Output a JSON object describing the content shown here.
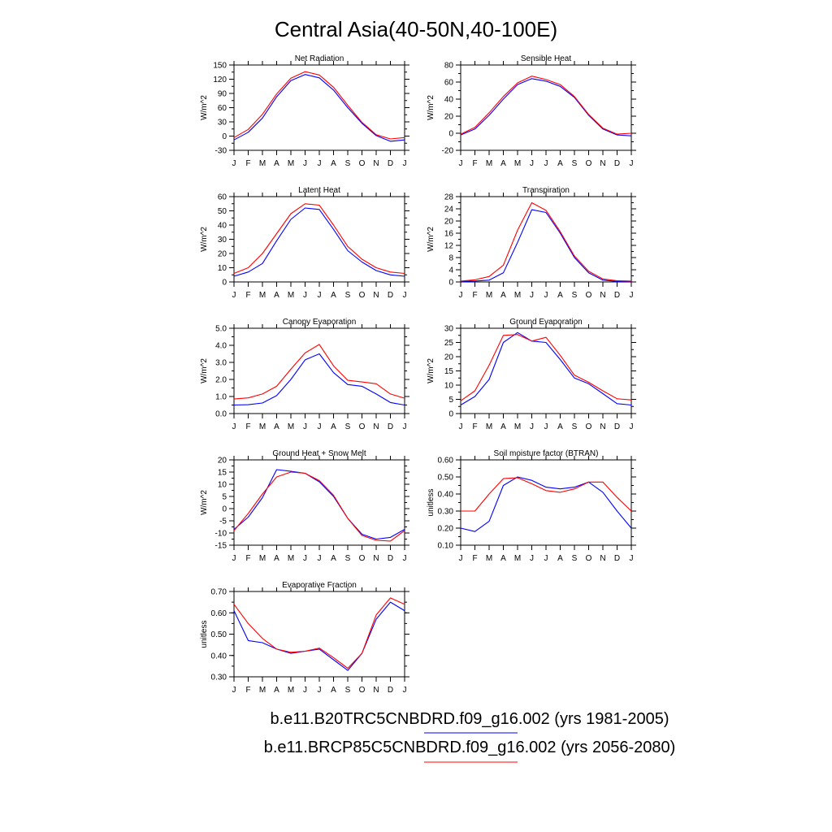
{
  "title": "Central Asia(40-50N,40-100E)",
  "colors": {
    "series_a": "#0000ff",
    "series_b": "#ff0000",
    "axis": "#000000"
  },
  "legend": [
    {
      "label": "b.e11.B20TRC5CNBDRD.f09_g16.002 (yrs 1981-2005)",
      "color": "#0000ff"
    },
    {
      "label": "b.e11.BRCP85C5CNBDRD.f09_g16.002 (yrs 2056-2080)",
      "color": "#ff0000"
    }
  ],
  "chart_data": [
    {
      "type": "line",
      "title": "Net Radiation",
      "ylabel": "W/m^2",
      "categories": [
        "J",
        "F",
        "M",
        "A",
        "M",
        "J",
        "J",
        "A",
        "S",
        "O",
        "N",
        "D",
        "J"
      ],
      "ylim": [
        -30,
        150
      ],
      "yticks": [
        "-30",
        "0",
        "30",
        "60",
        "90",
        "120",
        "150"
      ],
      "yminor": 15,
      "grid": false,
      "series": [
        {
          "values": [
            -8,
            8,
            38,
            83,
            117,
            130,
            123,
            97,
            60,
            27,
            1,
            -11,
            -8
          ]
        },
        {
          "values": [
            -3,
            14,
            46,
            89,
            122,
            136,
            129,
            103,
            65,
            29,
            3,
            -6,
            -3
          ]
        }
      ]
    },
    {
      "type": "line",
      "title": "Sensible Heat",
      "ylabel": "W/m^2",
      "categories": [
        "J",
        "F",
        "M",
        "A",
        "M",
        "J",
        "J",
        "A",
        "S",
        "O",
        "N",
        "D",
        "J"
      ],
      "ylim": [
        -20,
        80
      ],
      "yticks": [
        "-20",
        "0",
        "20",
        "40",
        "60",
        "80"
      ],
      "yminor": 10,
      "grid": false,
      "series": [
        {
          "values": [
            -2,
            5,
            21,
            40,
            57,
            64,
            61,
            55,
            42,
            21,
            5,
            -2,
            -3
          ]
        },
        {
          "values": [
            -1,
            7,
            24,
            43,
            59,
            67,
            63,
            57,
            43,
            22,
            6,
            -1,
            0
          ]
        }
      ]
    },
    {
      "type": "line",
      "title": "Latent Heat",
      "ylabel": "W/m^2",
      "categories": [
        "J",
        "F",
        "M",
        "A",
        "M",
        "J",
        "J",
        "A",
        "S",
        "O",
        "N",
        "D",
        "J"
      ],
      "ylim": [
        0,
        60
      ],
      "yticks": [
        "0",
        "10",
        "20",
        "30",
        "40",
        "50",
        "60"
      ],
      "yminor": 5,
      "grid": false,
      "series": [
        {
          "values": [
            4,
            7,
            13,
            29,
            44,
            52,
            51,
            37,
            22,
            14,
            8,
            5,
            4
          ]
        },
        {
          "values": [
            6,
            10,
            20,
            34,
            48,
            55,
            54,
            40,
            25,
            16,
            10,
            7,
            6
          ]
        }
      ]
    },
    {
      "type": "line",
      "title": "Transpiration",
      "ylabel": "W/m^2",
      "categories": [
        "J",
        "F",
        "M",
        "A",
        "M",
        "J",
        "J",
        "A",
        "S",
        "O",
        "N",
        "D",
        "J"
      ],
      "ylim": [
        0,
        28
      ],
      "yticks": [
        "0",
        "4",
        "8",
        "12",
        "16",
        "20",
        "24",
        "28"
      ],
      "yminor": 2,
      "grid": false,
      "series": [
        {
          "values": [
            0.2,
            0.3,
            0.6,
            3,
            13,
            23.7,
            22.8,
            16,
            8,
            3,
            0.6,
            0.2,
            0.2
          ]
        },
        {
          "values": [
            0.3,
            0.7,
            1.8,
            5.5,
            17,
            26,
            23.5,
            16.5,
            8.5,
            3.5,
            1,
            0.4,
            0.3
          ]
        }
      ]
    },
    {
      "type": "line",
      "title": "Canopy Evaporation",
      "ylabel": "W/m^2",
      "categories": [
        "J",
        "F",
        "M",
        "A",
        "M",
        "J",
        "J",
        "A",
        "S",
        "O",
        "N",
        "D",
        "J"
      ],
      "ylim": [
        0,
        5
      ],
      "yticks": [
        "0.0",
        "1.0",
        "2.0",
        "3.0",
        "4.0",
        "5.0"
      ],
      "yminor": 0.5,
      "grid": false,
      "series": [
        {
          "values": [
            0.5,
            0.52,
            0.62,
            1.05,
            2.0,
            3.15,
            3.5,
            2.4,
            1.7,
            1.6,
            1.15,
            0.65,
            0.5
          ]
        },
        {
          "values": [
            0.85,
            0.92,
            1.15,
            1.6,
            2.6,
            3.55,
            4.05,
            2.8,
            1.95,
            1.85,
            1.75,
            1.15,
            0.9
          ]
        }
      ]
    },
    {
      "type": "line",
      "title": "Ground Evaporation",
      "ylabel": "W/m^2",
      "categories": [
        "J",
        "F",
        "M",
        "A",
        "M",
        "J",
        "J",
        "A",
        "S",
        "O",
        "N",
        "D",
        "J"
      ],
      "ylim": [
        0,
        30
      ],
      "yticks": [
        "0",
        "5",
        "10",
        "15",
        "20",
        "25",
        "30"
      ],
      "yminor": 2.5,
      "grid": false,
      "series": [
        {
          "values": [
            3,
            6,
            12,
            25,
            28.5,
            25.5,
            25,
            19,
            12.5,
            10.5,
            7,
            3.5,
            3
          ]
        },
        {
          "values": [
            4.5,
            8,
            17,
            27.5,
            27.8,
            25.5,
            26.8,
            20.5,
            13.5,
            11,
            8,
            5.2,
            4.8
          ]
        }
      ]
    },
    {
      "type": "line",
      "title": "Ground Heat + Snow Melt",
      "ylabel": "W/m^2",
      "categories": [
        "J",
        "F",
        "M",
        "A",
        "M",
        "J",
        "J",
        "A",
        "S",
        "O",
        "N",
        "D",
        "J"
      ],
      "ylim": [
        -15,
        20
      ],
      "yticks": [
        "-15",
        "-10",
        "-5",
        "0",
        "5",
        "10",
        "15",
        "20"
      ],
      "yminor": 2.5,
      "grid": false,
      "series": [
        {
          "values": [
            -8.5,
            -3.5,
            4.5,
            16,
            15.3,
            14.5,
            11,
            5,
            -4,
            -10.5,
            -12.5,
            -11.8,
            -8.5
          ]
        },
        {
          "values": [
            -9,
            -2,
            6,
            13,
            15,
            14.5,
            11.5,
            5.5,
            -4,
            -11,
            -13,
            -13.3,
            -9
          ]
        }
      ]
    },
    {
      "type": "line",
      "title": "Soil moisture factor (BTRAN)",
      "ylabel": "unitless",
      "categories": [
        "J",
        "F",
        "M",
        "A",
        "M",
        "J",
        "J",
        "A",
        "S",
        "O",
        "N",
        "D",
        "J"
      ],
      "ylim": [
        0.1,
        0.6
      ],
      "yticks": [
        "0.10",
        "0.20",
        "0.30",
        "0.40",
        "0.50",
        "0.60"
      ],
      "yminor": 0.05,
      "grid": false,
      "series": [
        {
          "values": [
            0.2,
            0.18,
            0.24,
            0.45,
            0.5,
            0.48,
            0.44,
            0.43,
            0.44,
            0.47,
            0.41,
            0.3,
            0.2
          ]
        },
        {
          "values": [
            0.3,
            0.3,
            0.4,
            0.49,
            0.495,
            0.46,
            0.42,
            0.41,
            0.43,
            0.47,
            0.47,
            0.38,
            0.3
          ]
        }
      ]
    },
    {
      "type": "line",
      "title": "Evaporative Fraction",
      "ylabel": "unitless",
      "categories": [
        "J",
        "F",
        "M",
        "A",
        "M",
        "J",
        "J",
        "A",
        "S",
        "O",
        "N",
        "D",
        "J"
      ],
      "ylim": [
        0.3,
        0.7
      ],
      "yticks": [
        "0.30",
        "0.40",
        "0.50",
        "0.60",
        "0.70"
      ],
      "yminor": 0.05,
      "grid": false,
      "series": [
        {
          "values": [
            0.61,
            0.47,
            0.46,
            0.43,
            0.41,
            0.42,
            0.43,
            0.38,
            0.33,
            0.41,
            0.57,
            0.65,
            0.61
          ]
        },
        {
          "values": [
            0.64,
            0.55,
            0.48,
            0.43,
            0.415,
            0.42,
            0.435,
            0.39,
            0.34,
            0.41,
            0.59,
            0.67,
            0.64
          ]
        }
      ]
    }
  ]
}
